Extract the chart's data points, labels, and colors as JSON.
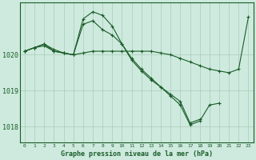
{
  "xlabel": "Graphe pression niveau de la mer (hPa)",
  "background_color": "#ceeade",
  "plot_bg_color": "#ceeade",
  "grid_color": "#a8cbb8",
  "line_color": "#1a5c28",
  "ylim": [
    1017.55,
    1021.45
  ],
  "yticks": [
    1018,
    1019,
    1020
  ],
  "xticks": [
    0,
    1,
    2,
    3,
    4,
    5,
    6,
    7,
    8,
    9,
    10,
    11,
    12,
    13,
    14,
    15,
    16,
    17,
    18,
    19,
    20,
    21,
    22,
    23
  ],
  "series": [
    {
      "x": [
        0,
        1,
        2,
        3,
        4,
        5,
        6,
        7,
        8,
        9,
        10,
        11,
        12,
        13,
        14,
        15,
        16,
        17,
        18,
        19,
        20,
        21,
        22,
        23
      ],
      "y": [
        1020.1,
        1020.2,
        1020.3,
        1020.1,
        1020.05,
        1020.0,
        1020.05,
        1020.1,
        1020.1,
        1020.1,
        1020.1,
        1020.1,
        1020.1,
        1020.1,
        1020.05,
        1020.0,
        1019.9,
        1019.8,
        1019.7,
        1019.6,
        1019.55,
        1019.5,
        1019.6,
        1021.05
      ]
    },
    {
      "x": [
        0,
        1,
        2,
        3,
        4,
        5,
        6,
        7,
        8,
        9,
        10,
        11,
        12,
        13,
        14,
        15,
        16,
        17,
        18,
        19,
        20,
        21,
        22,
        23
      ],
      "y": [
        1020.1,
        1020.2,
        1020.25,
        1020.1,
        1020.05,
        1020.0,
        1021.0,
        1021.2,
        1021.1,
        1020.8,
        1020.3,
        1019.85,
        1019.55,
        1019.3,
        1019.1,
        1018.9,
        1018.7,
        1018.1,
        1018.2,
        null,
        null,
        null,
        null,
        null
      ]
    },
    {
      "x": [
        0,
        1,
        2,
        3,
        4,
        5,
        6,
        7,
        8,
        9,
        10,
        11,
        12,
        13,
        14,
        15,
        16,
        17,
        18,
        19,
        20,
        21,
        22,
        23
      ],
      "y": [
        1020.1,
        1020.2,
        1020.3,
        1020.15,
        1020.05,
        1020.0,
        1020.85,
        1020.95,
        1020.7,
        1020.55,
        1020.3,
        1019.9,
        1019.6,
        1019.35,
        1019.1,
        1018.85,
        1018.6,
        1018.05,
        1018.15,
        1018.6,
        1018.65,
        null,
        null,
        null
      ]
    }
  ]
}
